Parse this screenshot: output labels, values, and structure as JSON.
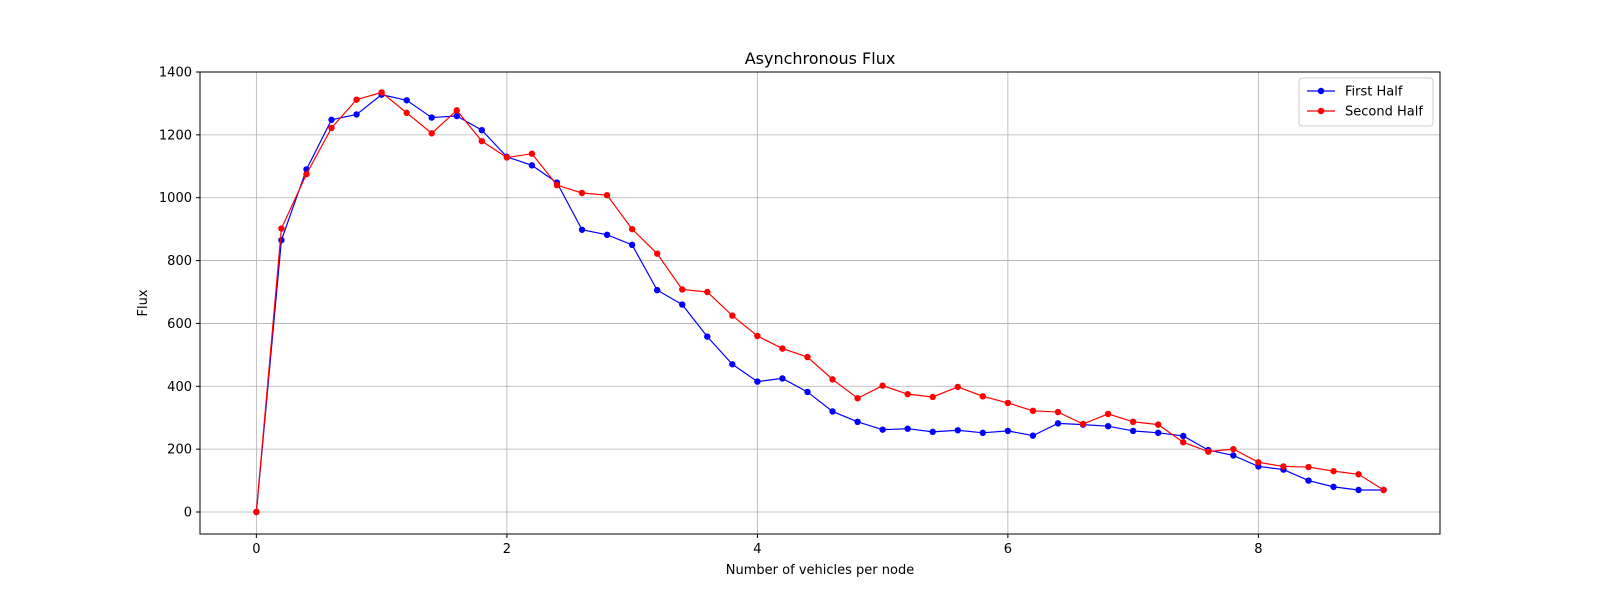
{
  "chart_data": {
    "type": "line",
    "title": "Asynchronous Flux",
    "xlabel": "Number of vehicles per node",
    "ylabel": "Flux",
    "xlim": [
      -0.45,
      9.45
    ],
    "ylim": [
      -70,
      1400
    ],
    "xticks": [
      0,
      2,
      4,
      6,
      8
    ],
    "yticks": [
      0,
      200,
      400,
      600,
      800,
      1000,
      1200,
      1400
    ],
    "grid": true,
    "legend_position": "top-right",
    "x": [
      0,
      0.2,
      0.4,
      0.6,
      0.8,
      1.0,
      1.2,
      1.4,
      1.6,
      1.8,
      2.0,
      2.2,
      2.4,
      2.6,
      2.8,
      3.0,
      3.2,
      3.4,
      3.6,
      3.8,
      4.0,
      4.2,
      4.4,
      4.6,
      4.8,
      5.0,
      5.2,
      5.4,
      5.6,
      5.8,
      6.0,
      6.2,
      6.4,
      6.6,
      6.8,
      7.0,
      7.2,
      7.4,
      7.6,
      7.8,
      8.0,
      8.2,
      8.4,
      8.6,
      8.8,
      9.0
    ],
    "series": [
      {
        "name": "First Half",
        "color": "#0000ff",
        "values": [
          0,
          865,
          1090,
          1248,
          1265,
          1328,
          1310,
          1255,
          1260,
          1215,
          1130,
          1103,
          1048,
          898,
          882,
          850,
          706,
          660,
          558,
          470,
          415,
          425,
          382,
          320,
          287,
          262,
          265,
          255,
          260,
          252,
          258,
          243,
          282,
          278,
          273,
          258,
          252,
          242,
          197,
          180,
          145,
          135,
          100,
          80,
          70,
          70
        ]
      },
      {
        "name": "Second Half",
        "color": "#ff0000",
        "values": [
          0,
          902,
          1075,
          1222,
          1312,
          1335,
          1270,
          1205,
          1278,
          1180,
          1128,
          1140,
          1040,
          1015,
          1008,
          900,
          822,
          708,
          700,
          625,
          560,
          520,
          493,
          422,
          362,
          402,
          375,
          366,
          398,
          368,
          347,
          322,
          318,
          280,
          312,
          287,
          278,
          222,
          192,
          200,
          158,
          145,
          143,
          130,
          120,
          70
        ]
      }
    ]
  }
}
